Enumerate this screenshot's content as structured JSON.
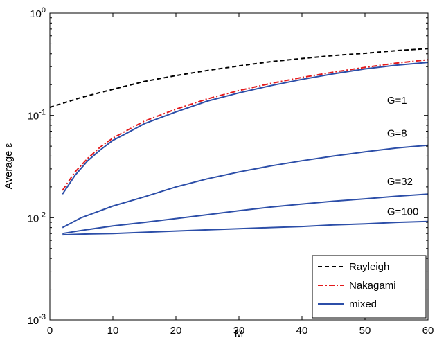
{
  "chart_data": {
    "type": "line",
    "xlabel": "M",
    "ylabel": "Average ε",
    "xlim": [
      0,
      60
    ],
    "ylim": [
      0.001,
      1
    ],
    "yscale": "log",
    "grid": false,
    "legend_position": "bottom-right",
    "x_ticks": [
      "0",
      "10",
      "20",
      "30",
      "40",
      "50",
      "60"
    ],
    "y_ticks": [
      {
        "base": "10",
        "exp": "-3"
      },
      {
        "base": "10",
        "exp": "-2"
      },
      {
        "base": "10",
        "exp": "-1"
      },
      {
        "base": "10",
        "exp": "0"
      }
    ],
    "legend": [
      {
        "name": "Rayleigh",
        "color": "#000000",
        "style": "dashed"
      },
      {
        "name": "Nakagami",
        "color": "#e41a1c",
        "style": "dashdot"
      },
      {
        "name": "mixed",
        "color": "#2c4ea8",
        "style": "solid"
      }
    ],
    "annotations": [
      {
        "text": "G=1",
        "x": 53.5,
        "y": 0.13
      },
      {
        "text": "G=8",
        "x": 53.5,
        "y": 0.062
      },
      {
        "text": "G=32",
        "x": 53.5,
        "y": 0.021
      },
      {
        "text": "G=100",
        "x": 53.5,
        "y": 0.0106
      }
    ],
    "series": [
      {
        "name": "Rayleigh",
        "color": "#000000",
        "style": "dashed",
        "x": [
          0,
          5,
          10,
          15,
          20,
          25,
          30,
          35,
          40,
          45,
          50,
          55,
          60
        ],
        "y": [
          0.12,
          0.15,
          0.18,
          0.215,
          0.245,
          0.275,
          0.305,
          0.335,
          0.36,
          0.385,
          0.405,
          0.43,
          0.45
        ]
      },
      {
        "name": "Nakagami",
        "color": "#e41a1c",
        "style": "dashdot",
        "group": "G=1",
        "x": [
          2,
          4,
          6,
          8,
          10,
          12,
          15,
          20,
          25,
          30,
          35,
          40,
          45,
          50,
          55,
          60
        ],
        "y": [
          0.0185,
          0.028,
          0.038,
          0.049,
          0.06,
          0.07,
          0.088,
          0.115,
          0.145,
          0.175,
          0.205,
          0.235,
          0.265,
          0.295,
          0.325,
          0.35
        ]
      },
      {
        "name": "mixed",
        "color": "#2c4ea8",
        "style": "solid",
        "group": "G=1",
        "x": [
          2,
          4,
          6,
          8,
          10,
          12,
          15,
          20,
          25,
          30,
          35,
          40,
          45,
          50,
          55,
          60
        ],
        "y": [
          0.017,
          0.026,
          0.036,
          0.046,
          0.057,
          0.066,
          0.083,
          0.108,
          0.138,
          0.166,
          0.195,
          0.225,
          0.255,
          0.285,
          0.31,
          0.33
        ]
      },
      {
        "name": "mixed",
        "color": "#2c4ea8",
        "style": "solid",
        "group": "G=8",
        "x": [
          2,
          5,
          10,
          15,
          20,
          25,
          30,
          35,
          40,
          45,
          50,
          55,
          60
        ],
        "y": [
          0.008,
          0.01,
          0.013,
          0.016,
          0.02,
          0.024,
          0.028,
          0.032,
          0.036,
          0.04,
          0.044,
          0.048,
          0.051
        ]
      },
      {
        "name": "mixed",
        "color": "#2c4ea8",
        "style": "solid",
        "group": "G=32",
        "x": [
          2,
          5,
          10,
          15,
          20,
          25,
          30,
          35,
          40,
          45,
          50,
          55,
          60
        ],
        "y": [
          0.007,
          0.0075,
          0.0083,
          0.009,
          0.0098,
          0.0107,
          0.0117,
          0.0127,
          0.0136,
          0.0145,
          0.0153,
          0.0162,
          0.017
        ]
      },
      {
        "name": "mixed",
        "color": "#2c4ea8",
        "style": "solid",
        "group": "G=100",
        "x": [
          2,
          5,
          10,
          15,
          20,
          25,
          30,
          35,
          40,
          45,
          50,
          55,
          60
        ],
        "y": [
          0.0068,
          0.0069,
          0.007,
          0.0072,
          0.0074,
          0.0076,
          0.0078,
          0.008,
          0.0082,
          0.0085,
          0.0087,
          0.009,
          0.0092
        ]
      }
    ]
  }
}
